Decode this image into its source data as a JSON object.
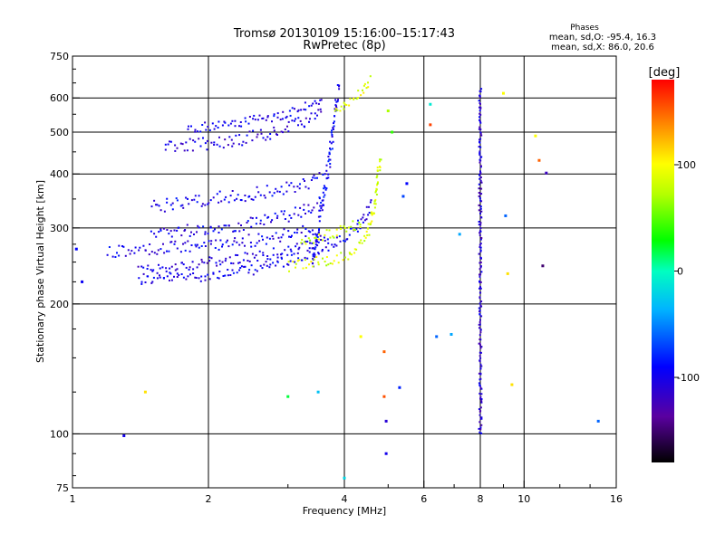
{
  "header": {
    "title": "Tromsø 20130109 15:16:00–15:17:43",
    "subtitle": "RwPretec (8p)"
  },
  "stats": {
    "heading": "Phases",
    "line1": "mean, sd,O: -95.4, 16.3",
    "line2": "mean, sd,X:  86.0, 20.6"
  },
  "colorbar": {
    "label": "[deg]",
    "ticks": [
      {
        "value": 100,
        "label": "100"
      },
      {
        "value": 0,
        "label": "0"
      },
      {
        "value": -100,
        "label": "-100"
      }
    ],
    "range": [
      -180,
      180
    ]
  },
  "chart_data": {
    "type": "scatter",
    "xlabel": "Frequency [MHz]",
    "ylabel": "Stationary phase Virtual Height [km]",
    "xscale": "log",
    "yscale": "log",
    "xlim": [
      1,
      16
    ],
    "ylim": [
      75,
      750
    ],
    "xticks": [
      {
        "value": 1,
        "label": "1"
      },
      {
        "value": 2,
        "label": "2"
      },
      {
        "value": 4,
        "label": "4"
      },
      {
        "value": 6,
        "label": "6"
      },
      {
        "value": 8,
        "label": "8"
      },
      {
        "value": 10,
        "label": "10"
      },
      {
        "value": 16,
        "label": "16"
      }
    ],
    "yticks": [
      {
        "value": 75,
        "label": "75"
      },
      {
        "value": 100,
        "label": "100"
      },
      {
        "value": 200,
        "label": "200"
      },
      {
        "value": 300,
        "label": "300"
      },
      {
        "value": 400,
        "label": "400"
      },
      {
        "value": 500,
        "label": "500"
      },
      {
        "value": 600,
        "label": "600"
      },
      {
        "value": 750,
        "label": "750"
      }
    ],
    "xgrid": [
      2,
      4,
      6,
      8,
      10
    ],
    "ygrid": [
      100,
      200,
      300,
      400,
      500,
      600
    ],
    "grid": true,
    "color_scale": "rainbow phase (deg)",
    "traces": [
      {
        "name": "O-mode low trace",
        "phase": -100,
        "spread": 12,
        "points": [
          [
            1.4,
            227
          ],
          [
            1.6,
            229
          ],
          [
            1.8,
            231
          ],
          [
            2.0,
            233
          ],
          [
            2.2,
            235
          ],
          [
            2.4,
            238
          ],
          [
            2.6,
            242
          ],
          [
            2.8,
            247
          ],
          [
            3.0,
            252
          ],
          [
            3.2,
            257
          ],
          [
            3.5,
            265
          ],
          [
            3.8,
            275
          ],
          [
            4.0,
            283
          ],
          [
            4.2,
            295
          ],
          [
            4.4,
            310
          ],
          [
            4.5,
            325
          ],
          [
            4.6,
            345
          ]
        ]
      },
      {
        "name": "O-mode low trace 2",
        "phase": -105,
        "spread": 12,
        "points": [
          [
            1.4,
            238
          ],
          [
            1.6,
            242
          ],
          [
            1.9,
            248
          ],
          [
            2.2,
            252
          ],
          [
            2.5,
            257
          ],
          [
            2.8,
            262
          ],
          [
            3.1,
            268
          ],
          [
            3.4,
            275
          ],
          [
            3.7,
            285
          ]
        ]
      },
      {
        "name": "O-mode band 265",
        "phase": -100,
        "spread": 14,
        "points": [
          [
            1.2,
            262
          ],
          [
            1.4,
            266
          ],
          [
            1.7,
            270
          ],
          [
            2.0,
            274
          ],
          [
            2.3,
            278
          ],
          [
            2.6,
            282
          ],
          [
            2.9,
            288
          ],
          [
            3.2,
            292
          ],
          [
            3.5,
            300
          ]
        ]
      },
      {
        "name": "O-mode band 295",
        "phase": -100,
        "spread": 14,
        "points": [
          [
            1.5,
            292
          ],
          [
            1.8,
            296
          ],
          [
            2.1,
            300
          ],
          [
            2.4,
            305
          ],
          [
            2.7,
            312
          ],
          [
            3.0,
            320
          ],
          [
            3.3,
            330
          ],
          [
            3.6,
            345
          ]
        ]
      },
      {
        "name": "O-mode band 340",
        "phase": -100,
        "spread": 14,
        "points": [
          [
            1.5,
            335
          ],
          [
            1.8,
            345
          ],
          [
            2.1,
            352
          ],
          [
            2.4,
            355
          ],
          [
            2.7,
            365
          ],
          [
            3.0,
            370
          ],
          [
            3.3,
            380
          ],
          [
            3.6,
            395
          ]
        ]
      },
      {
        "name": "O-mode band 470",
        "phase": -105,
        "spread": 14,
        "points": [
          [
            1.6,
            462
          ],
          [
            1.8,
            466
          ],
          [
            2.0,
            470
          ],
          [
            2.2,
            476
          ],
          [
            2.4,
            482
          ],
          [
            2.6,
            490
          ],
          [
            2.8,
            500
          ],
          [
            3.0,
            512
          ],
          [
            3.2,
            525
          ],
          [
            3.4,
            540
          ],
          [
            3.6,
            560
          ]
        ]
      },
      {
        "name": "O-mode band 520",
        "phase": -100,
        "spread": 10,
        "points": [
          [
            1.8,
            510
          ],
          [
            2.1,
            518
          ],
          [
            2.4,
            528
          ],
          [
            2.7,
            540
          ],
          [
            3.0,
            550
          ],
          [
            3.3,
            575
          ],
          [
            3.6,
            600
          ]
        ]
      },
      {
        "name": "O-mode F-spread vertical",
        "phase": -95,
        "spread": 14,
        "points": [
          [
            3.4,
            240
          ],
          [
            3.5,
            300
          ],
          [
            3.6,
            360
          ],
          [
            3.7,
            420
          ],
          [
            3.75,
            480
          ],
          [
            3.8,
            540
          ],
          [
            3.85,
            600
          ],
          [
            3.9,
            640
          ]
        ]
      },
      {
        "name": "X-mode trace",
        "phase": 86,
        "spread": 12,
        "points": [
          [
            3.0,
            244
          ],
          [
            3.3,
            248
          ],
          [
            3.6,
            252
          ],
          [
            3.9,
            256
          ],
          [
            4.1,
            262
          ],
          [
            4.3,
            272
          ],
          [
            4.5,
            290
          ],
          [
            4.6,
            320
          ],
          [
            4.7,
            360
          ],
          [
            4.75,
            400
          ],
          [
            4.8,
            440
          ]
        ]
      },
      {
        "name": "X-mode upper",
        "phase": 90,
        "spread": 10,
        "points": [
          [
            3.8,
            560
          ],
          [
            4.0,
            580
          ],
          [
            4.2,
            600
          ],
          [
            4.4,
            630
          ],
          [
            4.5,
            650
          ],
          [
            4.6,
            665
          ]
        ]
      },
      {
        "name": "X-mode band 285",
        "phase": 80,
        "spread": 12,
        "points": [
          [
            3.2,
            280
          ],
          [
            3.5,
            285
          ],
          [
            3.8,
            292
          ],
          [
            4.1,
            300
          ],
          [
            4.4,
            310
          ]
        ]
      },
      {
        "name": "Interference 8 MHz",
        "phase": -110,
        "spread": 4,
        "points": [
          [
            8,
            100
          ],
          [
            8,
            150
          ],
          [
            8,
            200
          ],
          [
            8,
            250
          ],
          [
            8,
            300
          ],
          [
            8,
            350
          ],
          [
            8,
            400
          ],
          [
            8,
            450
          ],
          [
            8,
            500
          ],
          [
            8,
            550
          ],
          [
            8,
            600
          ],
          [
            8,
            640
          ]
        ]
      }
    ],
    "scatter_points": [
      {
        "x": 1.02,
        "y": 268,
        "phase": -90
      },
      {
        "x": 1.05,
        "y": 225,
        "phase": -95
      },
      {
        "x": 1.3,
        "y": 99,
        "phase": -100
      },
      {
        "x": 1.45,
        "y": 125,
        "phase": 110
      },
      {
        "x": 3.0,
        "y": 122,
        "phase": 20
      },
      {
        "x": 3.5,
        "y": 125,
        "phase": -30
      },
      {
        "x": 4.0,
        "y": 79,
        "phase": -20
      },
      {
        "x": 4.35,
        "y": 168,
        "phase": 100
      },
      {
        "x": 4.9,
        "y": 155,
        "phase": 150
      },
      {
        "x": 4.9,
        "y": 122,
        "phase": 155
      },
      {
        "x": 4.95,
        "y": 107,
        "phase": -110
      },
      {
        "x": 4.95,
        "y": 90,
        "phase": -100
      },
      {
        "x": 5.3,
        "y": 128,
        "phase": -80
      },
      {
        "x": 6.4,
        "y": 168,
        "phase": -60
      },
      {
        "x": 6.9,
        "y": 170,
        "phase": -40
      },
      {
        "x": 6.2,
        "y": 580,
        "phase": -10
      },
      {
        "x": 6.2,
        "y": 520,
        "phase": 160
      },
      {
        "x": 7.2,
        "y": 290,
        "phase": -40
      },
      {
        "x": 9.2,
        "y": 235,
        "phase": 110
      },
      {
        "x": 9.4,
        "y": 130,
        "phase": 110
      },
      {
        "x": 9.1,
        "y": 320,
        "phase": -60
      },
      {
        "x": 9.0,
        "y": 615,
        "phase": 100
      },
      {
        "x": 10.6,
        "y": 490,
        "phase": 100
      },
      {
        "x": 10.8,
        "y": 430,
        "phase": 150
      },
      {
        "x": 11.0,
        "y": 245,
        "phase": -150
      },
      {
        "x": 11.2,
        "y": 402,
        "phase": -120
      },
      {
        "x": 14.6,
        "y": 107,
        "phase": -60
      },
      {
        "x": 5.0,
        "y": 560,
        "phase": 70
      },
      {
        "x": 5.1,
        "y": 500,
        "phase": 40
      },
      {
        "x": 5.4,
        "y": 355,
        "phase": -70
      },
      {
        "x": 5.5,
        "y": 380,
        "phase": -90
      }
    ]
  }
}
